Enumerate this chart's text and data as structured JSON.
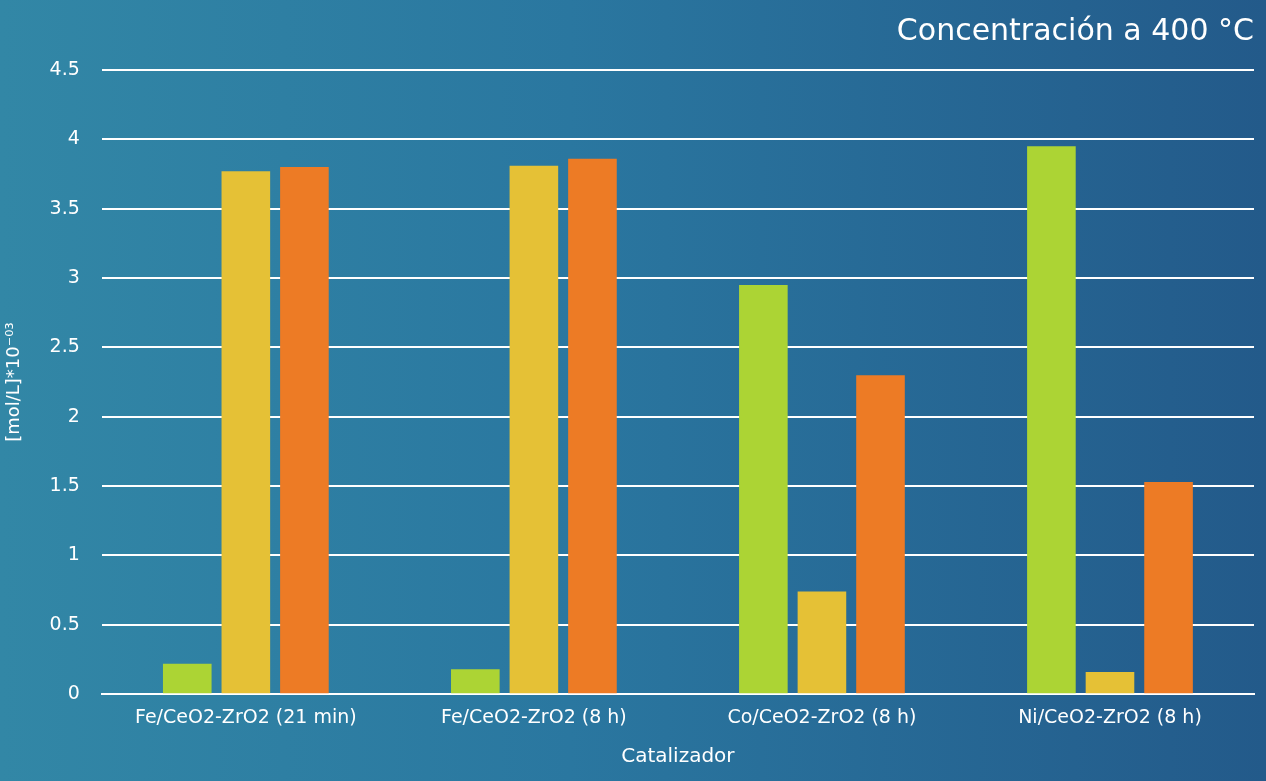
{
  "chart_data": {
    "type": "bar",
    "title": "Concentración a 400 °C",
    "xlabel": "Catalizador",
    "ylabel": "[mol/L]*10⁻⁰³",
    "categories": [
      "Fe/CeO2-ZrO2 (21 min)",
      "Fe/CeO2-ZrO2 (8 h)",
      "Co/CeO2-ZrO2 (8 h)",
      "Ni/CeO2-ZrO2 (8 h)"
    ],
    "series": [
      {
        "color": "#acd434",
        "values": [
          0.22,
          0.18,
          2.95,
          3.95
        ]
      },
      {
        "color": "#e5c136",
        "values": [
          3.77,
          3.81,
          0.74,
          0.16
        ]
      },
      {
        "color": "#ed7b25",
        "values": [
          3.8,
          3.86,
          2.3,
          1.53
        ]
      }
    ],
    "ylim": [
      0,
      4.5
    ],
    "yticks": [
      0,
      0.5,
      1,
      1.5,
      2,
      2.5,
      3,
      3.5,
      4,
      4.5
    ],
    "grid": "y",
    "legend": false
  }
}
